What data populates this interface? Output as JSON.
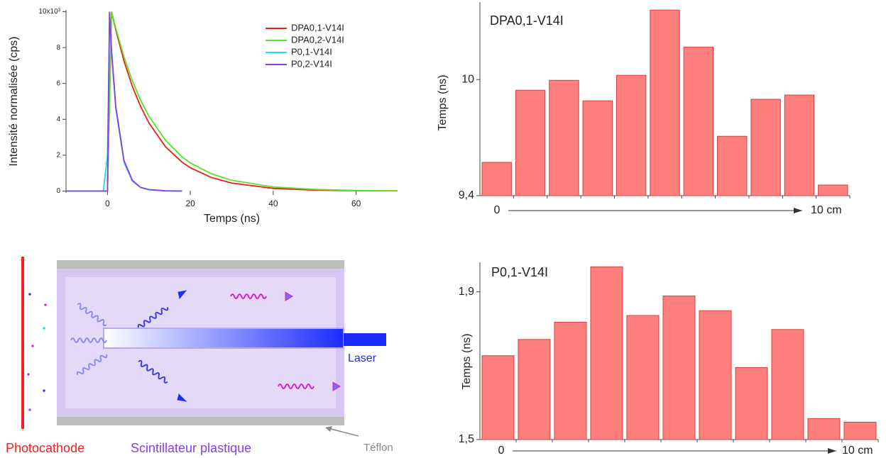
{
  "chart_data": [
    {
      "type": "line",
      "x_label": "Temps (ns)",
      "y_label": "Intensité normalisée (cps)",
      "x": [
        -10,
        -1,
        0,
        0.5,
        1,
        2,
        4,
        6,
        8,
        10,
        14,
        18,
        20,
        25,
        30,
        40,
        50,
        60,
        70
      ],
      "series": [
        {
          "name": "DPA0,1-V14I",
          "color": "#e8201a",
          "values": [
            0,
            0,
            0,
            5,
            10,
            8.98,
            7.24,
            5.84,
            4.71,
            3.8,
            2.47,
            1.61,
            1.3,
            0.76,
            0.44,
            0.15,
            0.05,
            0.02,
            0.01
          ]
        },
        {
          "name": "DPA0,2-V14I",
          "color": "#5ce02a",
          "values": [
            0,
            0,
            0,
            5,
            10,
            9.08,
            7.47,
            6.15,
            5.07,
            4.17,
            2.83,
            1.91,
            1.57,
            0.97,
            0.6,
            0.23,
            0.09,
            0.03,
            0.01
          ]
        },
        {
          "name": "P0,1-V14I",
          "color": "#2ad8e8",
          "values": [
            0,
            0,
            2,
            9.8,
            7.6,
            4.6,
            1.6,
            0.55,
            0.2,
            0.07,
            0.01,
            0,
            null,
            null,
            null,
            null,
            null,
            null,
            null
          ]
        },
        {
          "name": "P0,2-V14I",
          "color": "#8a3ee0",
          "values": [
            0,
            0,
            0,
            10,
            7.8,
            4.7,
            1.7,
            0.6,
            0.2,
            0.08,
            0.01,
            0,
            null,
            null,
            null,
            null,
            null,
            null,
            null
          ]
        }
      ],
      "xlim": [
        -10,
        70
      ],
      "xticks": [
        0,
        20,
        40,
        60
      ],
      "ylim": [
        -0.1,
        10.1
      ],
      "yticks": [
        0,
        2,
        4,
        6,
        8,
        {
          "value": 10,
          "label": "10x10³"
        }
      ]
    },
    {
      "type": "bar",
      "title": "DPA0,1-V14I",
      "y_label": "Temps (ns)",
      "color": "#ff7f7f",
      "categories": [
        null,
        null,
        null,
        null,
        null,
        null,
        null,
        null,
        null,
        null,
        null
      ],
      "values": [
        9.572,
        9.945,
        9.996,
        9.89,
        10.022,
        10.359,
        10.168,
        9.707,
        9.898,
        9.92,
        9.455
      ],
      "ylim": [
        9.4,
        10.4
      ],
      "yticks": [
        {
          "value": 9.4,
          "label": "9,4"
        },
        10
      ],
      "x_arrow_labels": [
        "0",
        "10 cm"
      ]
    },
    {
      "type": "bar",
      "title": "P0,1-V14I",
      "y_label": "Temps (ns)",
      "color": "#ff7f7f",
      "categories": [
        null,
        null,
        null,
        null,
        null,
        null,
        null,
        null,
        null,
        null,
        null
      ],
      "values": [
        1.727,
        1.771,
        1.818,
        1.968,
        1.836,
        1.889,
        1.849,
        1.695,
        1.798,
        1.557,
        1.547
      ],
      "ylim": [
        1.5,
        1.98
      ],
      "yticks": [
        {
          "value": 1.5,
          "label": "1,5"
        },
        {
          "value": 1.9,
          "label": "1,9"
        }
      ],
      "x_arrow_labels": [
        "0",
        "10 cm"
      ]
    }
  ],
  "diagram": {
    "photocathode": "Photocathode",
    "scintillator": "Scintillateur plastique",
    "teflon": "Téflon",
    "laser": "Laser"
  }
}
